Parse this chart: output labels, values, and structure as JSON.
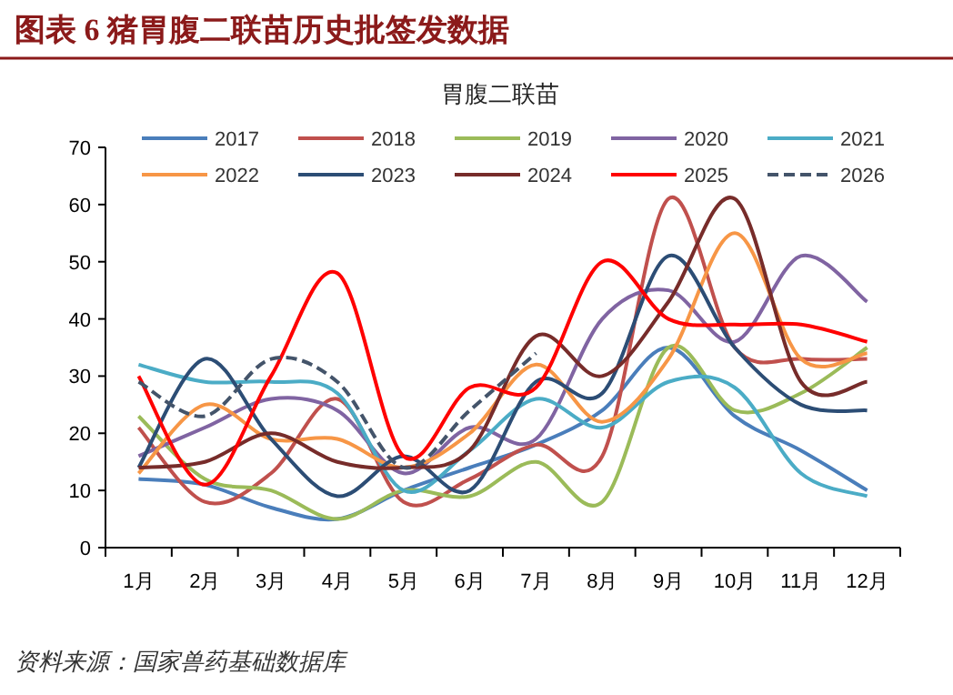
{
  "chart_data": {
    "type": "line",
    "title": "图表 6    猪胃腹二联苗历史批签发数据",
    "subtitle": "胃腹二联苗",
    "annotations": [
      "资料来源：国家兽药基础数据库"
    ],
    "categories": [
      "1月",
      "2月",
      "3月",
      "4月",
      "5月",
      "6月",
      "7月",
      "8月",
      "9月",
      "10月",
      "11月",
      "12月"
    ],
    "ylim": [
      0,
      70
    ],
    "yticks": [
      0,
      10,
      20,
      30,
      40,
      50,
      60,
      70
    ],
    "grid": false,
    "legend": "top",
    "marker": "none",
    "series": [
      {
        "name": "2017",
        "color": "#4a7ebb",
        "values": [
          12,
          11,
          7,
          5,
          10,
          14,
          18,
          24,
          35,
          23,
          17,
          10
        ]
      },
      {
        "name": "2018",
        "color": "#c0504d",
        "values": [
          21,
          8,
          13,
          26,
          8,
          12,
          18,
          16,
          61,
          35,
          33,
          33
        ]
      },
      {
        "name": "2019",
        "color": "#9bbb59",
        "values": [
          23,
          12,
          10,
          5,
          10,
          9,
          15,
          8,
          35,
          24,
          27,
          35
        ]
      },
      {
        "name": "2020",
        "color": "#8064a2",
        "values": [
          16,
          21,
          26,
          24,
          13,
          21,
          19,
          40,
          45,
          36,
          51,
          43
        ]
      },
      {
        "name": "2021",
        "color": "#4bacc6",
        "values": [
          32,
          29,
          29,
          27,
          10,
          17,
          26,
          21,
          29,
          28,
          13,
          9
        ]
      },
      {
        "name": "2022",
        "color": "#f79646",
        "values": [
          13,
          25,
          19,
          19,
          14,
          20,
          32,
          22,
          33,
          55,
          33,
          34
        ]
      },
      {
        "name": "2023",
        "color": "#2c4d75",
        "values": [
          14,
          33,
          19,
          9,
          16,
          10,
          29,
          27,
          51,
          35,
          25,
          24
        ]
      },
      {
        "name": "2024",
        "color": "#772c2a",
        "values": [
          14,
          15,
          20,
          15,
          14,
          17,
          37,
          30,
          43,
          61,
          29,
          29
        ]
      },
      {
        "name": "2025",
        "color": "#ff0000",
        "values": [
          30,
          11,
          30,
          48,
          16,
          28,
          28,
          50,
          40,
          39,
          39,
          36
        ]
      },
      {
        "name": "2026",
        "color": "#44546a",
        "line_style": "dashed",
        "values": [
          29,
          23,
          33,
          29,
          14,
          24,
          34,
          null,
          null,
          null,
          null,
          null
        ]
      }
    ]
  }
}
